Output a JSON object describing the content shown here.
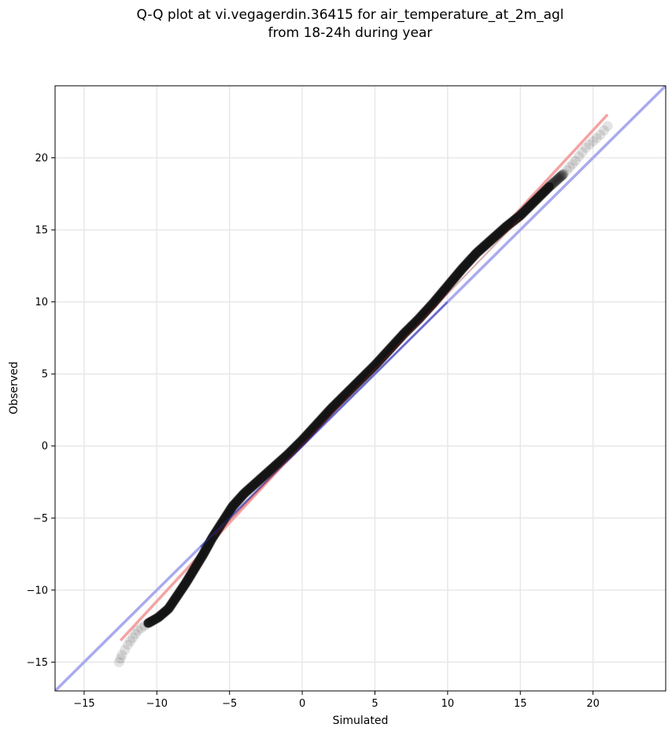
{
  "chart_data": {
    "type": "scatter",
    "title_line1": "Q-Q plot at vi.vegagerdin.36415 for air_temperature_at_2m_agl",
    "title_line2": "from 18-24h during year",
    "xlabel": "Simulated",
    "ylabel": "Observed",
    "xlim": [
      -17,
      25
    ],
    "ylim": [
      -17,
      25
    ],
    "xticks": [
      -15,
      -10,
      -5,
      0,
      5,
      10,
      15,
      20
    ],
    "yticks": [
      -15,
      -10,
      -5,
      0,
      5,
      10,
      15,
      20
    ],
    "xtick_labels": [
      "−15",
      "−10",
      "−5",
      "0",
      "5",
      "10",
      "15",
      "20"
    ],
    "ytick_labels": [
      "−15",
      "−10",
      "−5",
      "0",
      "5",
      "10",
      "15",
      "20"
    ],
    "grid": true,
    "reference_line": {
      "name": "1:1",
      "color": "#aaaaee",
      "x": [
        -17,
        25
      ],
      "y": [
        -17,
        25
      ]
    },
    "fit_line": {
      "name": "fit",
      "color": "#f4a3a3",
      "x": [
        -12.5,
        21.0
      ],
      "y": [
        -13.5,
        23.0
      ]
    },
    "quantiles": {
      "x": [
        -12.6,
        -12.4,
        -12.0,
        -11.3,
        -10.6,
        -9.9,
        -9.2,
        -8.6,
        -8.0,
        -7.4,
        -6.8,
        -6.2,
        -5.5,
        -4.8,
        -4.0,
        -3.0,
        -2.0,
        -1.0,
        0.0,
        1.0,
        2.0,
        3.0,
        4.0,
        5.0,
        6.0,
        7.0,
        8.0,
        9.0,
        10.0,
        11.0,
        12.0,
        13.0,
        14.0,
        15.0,
        16.0,
        17.0,
        18.0,
        18.8,
        19.5,
        20.5,
        21.0
      ],
      "y": [
        -15.0,
        -14.5,
        -13.8,
        -12.8,
        -12.3,
        -11.9,
        -11.3,
        -10.4,
        -9.5,
        -8.5,
        -7.5,
        -6.4,
        -5.3,
        -4.2,
        -3.3,
        -2.4,
        -1.5,
        -0.6,
        0.4,
        1.5,
        2.6,
        3.6,
        4.6,
        5.6,
        6.7,
        7.8,
        8.8,
        9.9,
        11.1,
        12.3,
        13.4,
        14.3,
        15.2,
        16.0,
        17.0,
        18.0,
        18.9,
        19.8,
        20.7,
        21.6,
        22.2
      ]
    },
    "point_color": "#222222"
  }
}
